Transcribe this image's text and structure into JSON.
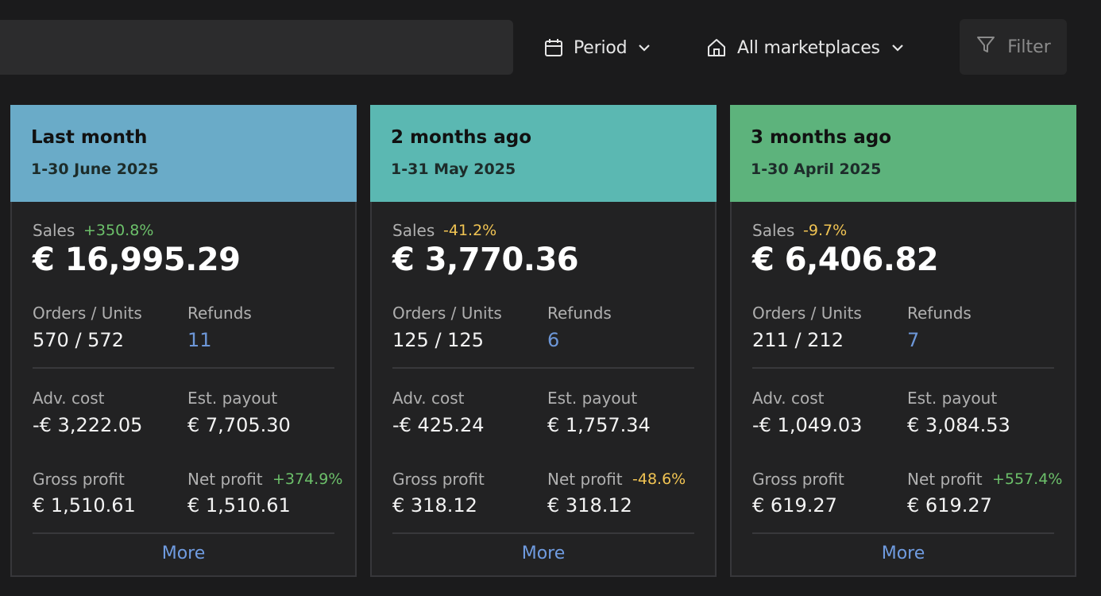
{
  "toolbar": {
    "period_label": "Period",
    "marketplace_label": "All marketplaces",
    "filter_label": "Filter"
  },
  "cards": [
    {
      "title": "Last month",
      "date_range": "1-30 June 2025",
      "header_color": "#6aabc8",
      "sales_label": "Sales",
      "sales_change": "+350.8%",
      "sales_change_trend": "positive",
      "sales_value": "€ 16,995.29",
      "orders_units_label": "Orders / Units",
      "orders_units_value": "570 / 572",
      "refunds_label": "Refunds",
      "refunds_value": "11",
      "adv_cost_label": "Adv. cost",
      "adv_cost_value": "-€ 3,222.05",
      "est_payout_label": "Est. payout",
      "est_payout_value": "€ 7,705.30",
      "gross_profit_label": "Gross profit",
      "gross_profit_value": "€ 1,510.61",
      "net_profit_label": "Net profit",
      "net_profit_change": "+374.9%",
      "net_profit_change_trend": "positive",
      "net_profit_value": "€ 1,510.61",
      "more_label": "More"
    },
    {
      "title": "2 months ago",
      "date_range": "1-31 May 2025",
      "header_color": "#5bb8b2",
      "sales_label": "Sales",
      "sales_change": "-41.2%",
      "sales_change_trend": "negative",
      "sales_value": "€ 3,770.36",
      "orders_units_label": "Orders / Units",
      "orders_units_value": "125 / 125",
      "refunds_label": "Refunds",
      "refunds_value": "6",
      "adv_cost_label": "Adv. cost",
      "adv_cost_value": "-€ 425.24",
      "est_payout_label": "Est. payout",
      "est_payout_value": "€ 1,757.34",
      "gross_profit_label": "Gross profit",
      "gross_profit_value": "€ 318.12",
      "net_profit_label": "Net profit",
      "net_profit_change": "-48.6%",
      "net_profit_change_trend": "negative",
      "net_profit_value": "€ 318.12",
      "more_label": "More"
    },
    {
      "title": "3 months ago",
      "date_range": "1-30 April 2025",
      "header_color": "#5db37c",
      "sales_label": "Sales",
      "sales_change": "-9.7%",
      "sales_change_trend": "negative",
      "sales_value": "€ 6,406.82",
      "orders_units_label": "Orders / Units",
      "orders_units_value": "211 / 212",
      "refunds_label": "Refunds",
      "refunds_value": "7",
      "adv_cost_label": "Adv. cost",
      "adv_cost_value": "-€ 1,049.03",
      "est_payout_label": "Est. payout",
      "est_payout_value": "€ 3,084.53",
      "gross_profit_label": "Gross profit",
      "gross_profit_value": "€ 619.27",
      "net_profit_label": "Net profit",
      "net_profit_change": "+557.4%",
      "net_profit_change_trend": "positive",
      "net_profit_value": "€ 619.27",
      "more_label": "More"
    }
  ]
}
